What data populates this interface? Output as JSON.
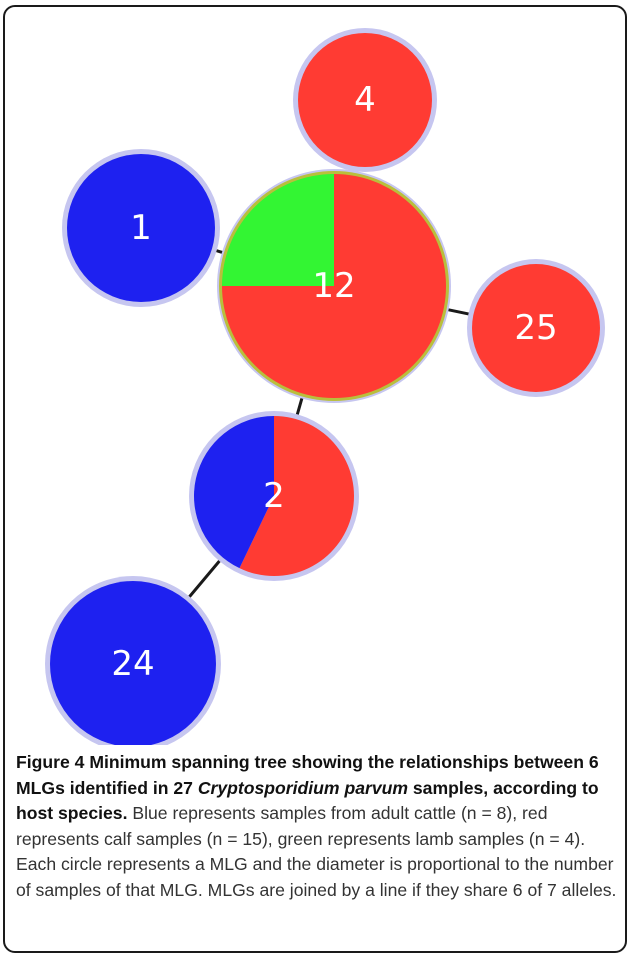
{
  "diagram": {
    "nodes": [
      {
        "id": "mlg-4",
        "label": "4",
        "slices": [
          {
            "host": "calf",
            "color": "#ff3b33",
            "fraction": 1.0
          }
        ]
      },
      {
        "id": "mlg-1",
        "label": "1",
        "slices": [
          {
            "host": "adult cattle",
            "color": "#1e21f0",
            "fraction": 1.0
          }
        ]
      },
      {
        "id": "mlg-12",
        "label": "12",
        "slices": [
          {
            "host": "calf",
            "color": "#ff3b33",
            "fraction": 0.75
          },
          {
            "host": "lamb",
            "color": "#33f533",
            "fraction": 0.25
          }
        ]
      },
      {
        "id": "mlg-25",
        "label": "25",
        "slices": [
          {
            "host": "calf",
            "color": "#ff3b33",
            "fraction": 1.0
          }
        ]
      },
      {
        "id": "mlg-2",
        "label": "2",
        "slices": [
          {
            "host": "calf",
            "color": "#ff3b33",
            "fraction": 0.571
          },
          {
            "host": "adult cattle",
            "color": "#1e21f0",
            "fraction": 0.429
          }
        ]
      },
      {
        "id": "mlg-24",
        "label": "24",
        "slices": [
          {
            "host": "adult cattle",
            "color": "#1e21f0",
            "fraction": 1.0
          }
        ]
      }
    ],
    "edges": [
      {
        "from": "mlg-12",
        "to": "mlg-4"
      },
      {
        "from": "mlg-12",
        "to": "mlg-1"
      },
      {
        "from": "mlg-12",
        "to": "mlg-25"
      },
      {
        "from": "mlg-12",
        "to": "mlg-2"
      },
      {
        "from": "mlg-2",
        "to": "mlg-24"
      }
    ],
    "colors": {
      "halo": "#c6c6f0",
      "highlight_ring": "#b9bf3c",
      "edge": "#1a1a1a"
    }
  },
  "caption": {
    "figure_label": "Figure 4",
    "bold_part1": " Minimum spanning tree showing the relationships between 6 MLGs identified in 27 ",
    "bold_italic": "Cryptosporidium parvum",
    "bold_part2": " samples, according to host species.",
    "body": " Blue represents samples from adult cattle (n = 8), red represents calf samples (n = 15), green represents lamb samples (n = 4). Each circle represents a MLG and the diameter is proportional to the number of samples of that MLG. MLGs are joined by a line if they share 6 of 7 alleles."
  }
}
